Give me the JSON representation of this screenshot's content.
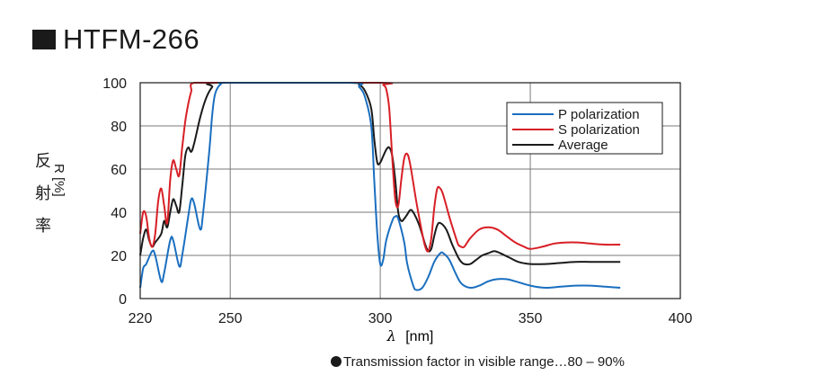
{
  "title": "HTFM-266",
  "ylabel_vertical": [
    "反",
    "射",
    "率"
  ],
  "ylabel_r": "R [%]",
  "xlabel_symbol": "λ",
  "xlabel_unit": "[nm]",
  "note": "Transmission factor in visible range…80 – 90%",
  "colors": {
    "p": "#1a6fc0",
    "s": "#d81f26",
    "avg": "#1a1a1a",
    "grid": "#7a7a7a"
  },
  "chart_data": {
    "type": "line",
    "xlim": [
      220,
      400
    ],
    "ylim": [
      0,
      100
    ],
    "x_ticks": [
      "220",
      "250",
      "300",
      "350",
      "400"
    ],
    "y_ticks": [
      "0",
      "20",
      "40",
      "60",
      "80",
      "100"
    ],
    "grid": true,
    "legend_position": "top-right",
    "series": [
      {
        "name": "P polarization",
        "color": "#1a6fc0",
        "points": [
          [
            220,
            5
          ],
          [
            221,
            14
          ],
          [
            222,
            16
          ],
          [
            224,
            22
          ],
          [
            225,
            20
          ],
          [
            227,
            8
          ],
          [
            228,
            12
          ],
          [
            230,
            27
          ],
          [
            231,
            27
          ],
          [
            233,
            15
          ],
          [
            234,
            20
          ],
          [
            236,
            38
          ],
          [
            237,
            46
          ],
          [
            238,
            44
          ],
          [
            240,
            32
          ],
          [
            241,
            40
          ],
          [
            243,
            68
          ],
          [
            244,
            85
          ],
          [
            245,
            95
          ],
          [
            247,
            99.5
          ],
          [
            250,
            100
          ],
          [
            290,
            100
          ],
          [
            293,
            98
          ],
          [
            295,
            93
          ],
          [
            297,
            80
          ],
          [
            298,
            55
          ],
          [
            299,
            30
          ],
          [
            300,
            16
          ],
          [
            301,
            18
          ],
          [
            302,
            27
          ],
          [
            304,
            36
          ],
          [
            305,
            38
          ],
          [
            306,
            37
          ],
          [
            308,
            26
          ],
          [
            309,
            16
          ],
          [
            311,
            6
          ],
          [
            312,
            4
          ],
          [
            314,
            5
          ],
          [
            316,
            10
          ],
          [
            318,
            17
          ],
          [
            320,
            21
          ],
          [
            321,
            21
          ],
          [
            323,
            18
          ],
          [
            325,
            12
          ],
          [
            327,
            7
          ],
          [
            330,
            5
          ],
          [
            333,
            6
          ],
          [
            336,
            8
          ],
          [
            339,
            9
          ],
          [
            342,
            9
          ],
          [
            345,
            8
          ],
          [
            350,
            6
          ],
          [
            355,
            5
          ],
          [
            360,
            5.5
          ],
          [
            365,
            6
          ],
          [
            370,
            6
          ],
          [
            375,
            5.5
          ],
          [
            380,
            5
          ]
        ]
      },
      {
        "name": "S polarization",
        "color": "#d81f26",
        "points": [
          [
            220,
            30
          ],
          [
            221,
            40
          ],
          [
            222,
            38
          ],
          [
            223,
            28
          ],
          [
            224,
            24
          ],
          [
            225,
            30
          ],
          [
            226,
            45
          ],
          [
            227,
            51
          ],
          [
            228,
            43
          ],
          [
            229,
            35
          ],
          [
            230,
            55
          ],
          [
            231,
            64
          ],
          [
            232,
            60
          ],
          [
            233,
            57
          ],
          [
            234,
            70
          ],
          [
            235,
            82
          ],
          [
            236,
            90
          ],
          [
            237,
            96
          ],
          [
            238,
            100
          ],
          [
            250,
            100
          ],
          [
            300,
            100
          ],
          [
            301,
            99
          ],
          [
            302,
            97
          ],
          [
            303,
            88
          ],
          [
            304,
            65
          ],
          [
            305,
            46
          ],
          [
            306,
            43
          ],
          [
            307,
            55
          ],
          [
            308,
            65
          ],
          [
            309,
            67
          ],
          [
            310,
            62
          ],
          [
            312,
            45
          ],
          [
            314,
            30
          ],
          [
            315,
            24
          ],
          [
            316,
            22
          ],
          [
            317,
            28
          ],
          [
            318,
            42
          ],
          [
            319,
            51
          ],
          [
            320,
            51
          ],
          [
            321,
            48
          ],
          [
            323,
            38
          ],
          [
            325,
            29
          ],
          [
            326,
            25
          ],
          [
            327,
            24
          ],
          [
            328,
            24
          ],
          [
            330,
            28
          ],
          [
            333,
            32
          ],
          [
            336,
            33
          ],
          [
            339,
            32
          ],
          [
            342,
            29
          ],
          [
            345,
            26
          ],
          [
            348,
            24
          ],
          [
            350,
            23
          ],
          [
            354,
            24
          ],
          [
            358,
            25.5
          ],
          [
            362,
            26
          ],
          [
            366,
            26
          ],
          [
            370,
            25.5
          ],
          [
            375,
            25
          ],
          [
            380,
            25
          ]
        ]
      },
      {
        "name": "Average",
        "color": "#1a1a1a",
        "points": [
          [
            220,
            20
          ],
          [
            221,
            28
          ],
          [
            222,
            32
          ],
          [
            223,
            27
          ],
          [
            224,
            24
          ],
          [
            225,
            26
          ],
          [
            227,
            30
          ],
          [
            228,
            36
          ],
          [
            229,
            33
          ],
          [
            230,
            40
          ],
          [
            231,
            46
          ],
          [
            232,
            43
          ],
          [
            233,
            40
          ],
          [
            234,
            52
          ],
          [
            235,
            66
          ],
          [
            236,
            70
          ],
          [
            237,
            68
          ],
          [
            238,
            72
          ],
          [
            240,
            84
          ],
          [
            242,
            93
          ],
          [
            244,
            98
          ],
          [
            246,
            100
          ],
          [
            290,
            100
          ],
          [
            293,
            99
          ],
          [
            295,
            96
          ],
          [
            297,
            88
          ],
          [
            298,
            74
          ],
          [
            299,
            63
          ],
          [
            300,
            63
          ],
          [
            301,
            66
          ],
          [
            302,
            69
          ],
          [
            303,
            70
          ],
          [
            304,
            66
          ],
          [
            305,
            55
          ],
          [
            306,
            40
          ],
          [
            307,
            36
          ],
          [
            308,
            37
          ],
          [
            309,
            39
          ],
          [
            310,
            41
          ],
          [
            311,
            40
          ],
          [
            313,
            34
          ],
          [
            315,
            25
          ],
          [
            316,
            22
          ],
          [
            317,
            23
          ],
          [
            318,
            29
          ],
          [
            319,
            34
          ],
          [
            320,
            35
          ],
          [
            322,
            32
          ],
          [
            324,
            25
          ],
          [
            326,
            19
          ],
          [
            327,
            17
          ],
          [
            328,
            16
          ],
          [
            330,
            16
          ],
          [
            332,
            18
          ],
          [
            334,
            20
          ],
          [
            336,
            21
          ],
          [
            338,
            22
          ],
          [
            340,
            21
          ],
          [
            343,
            19
          ],
          [
            346,
            17
          ],
          [
            350,
            16
          ],
          [
            355,
            16
          ],
          [
            360,
            16.5
          ],
          [
            365,
            17
          ],
          [
            370,
            17
          ],
          [
            375,
            17
          ],
          [
            380,
            17
          ]
        ]
      }
    ]
  }
}
